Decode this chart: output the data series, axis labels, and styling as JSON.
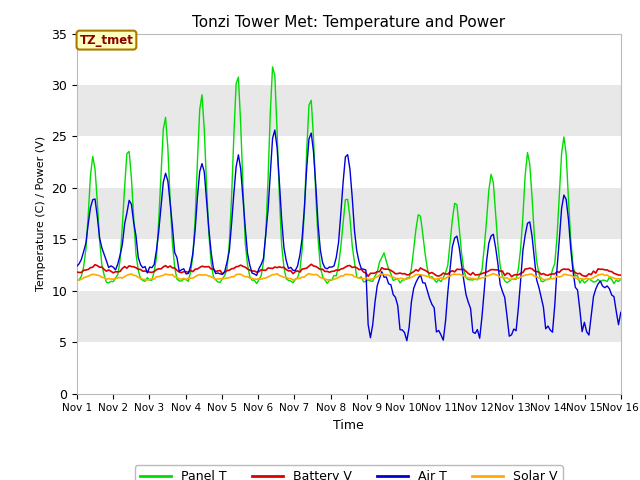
{
  "title": "Tonzi Tower Met: Temperature and Power",
  "ylabel": "Temperature (C) / Power (V)",
  "xlabel": "Time",
  "ylim": [
    0,
    35
  ],
  "yticks": [
    0,
    5,
    10,
    15,
    20,
    25,
    30,
    35
  ],
  "xtick_labels": [
    "Nov 1",
    "Nov 2",
    "Nov 3",
    "Nov 4",
    "Nov 5",
    "Nov 6",
    "Nov 7",
    "Nov 8",
    "Nov 9",
    "Nov 10",
    "Nov 11",
    "Nov 12",
    "Nov 13",
    "Nov 14",
    "Nov 15",
    "Nov 16"
  ],
  "colors": {
    "panel_t": "#00dd00",
    "battery_v": "#dd0000",
    "air_t": "#0000dd",
    "solar_v": "#ffaa00"
  },
  "legend_label": "TZ_tmet",
  "band_colors": [
    "#ffffff",
    "#e8e8e8"
  ],
  "n_points": 240
}
